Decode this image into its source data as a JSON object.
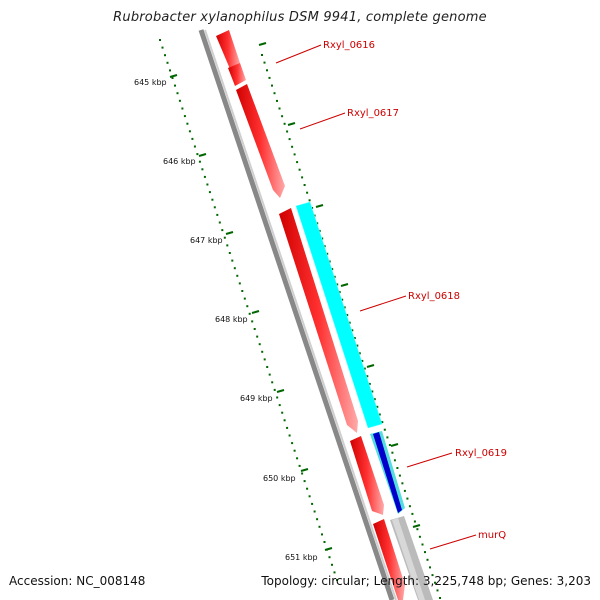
{
  "title": "Rubrobacter xylanophilus DSM 9941, complete genome",
  "footer": {
    "accession": "Accession: NC_008148",
    "summary": "Topology: circular; Length: 3,225,748 bp; Genes: 3,203"
  },
  "ticks": [
    {
      "label": "645 kbp"
    },
    {
      "label": "646 kbp"
    },
    {
      "label": "647 kbp"
    },
    {
      "label": "648 kbp"
    },
    {
      "label": "649 kbp"
    },
    {
      "label": "650 kbp"
    },
    {
      "label": "651 kbp"
    }
  ],
  "genes": [
    {
      "name": "Rxyl_0616",
      "strand": "forward",
      "color": "#ff0000"
    },
    {
      "name": "Rxyl_0617",
      "strand": "forward",
      "color": "#ff0000"
    },
    {
      "name": "Rxyl_0618",
      "strand": "reverse",
      "color": "#00ffff"
    },
    {
      "name": "Rxyl_0619",
      "strand": "reverse",
      "color": "#0000cc"
    },
    {
      "name": "murQ",
      "strand": "reverse",
      "color": "#aaaaaa"
    }
  ],
  "colors": {
    "backbone": "#888888",
    "tick": "#006600",
    "label": "#cc0000"
  }
}
